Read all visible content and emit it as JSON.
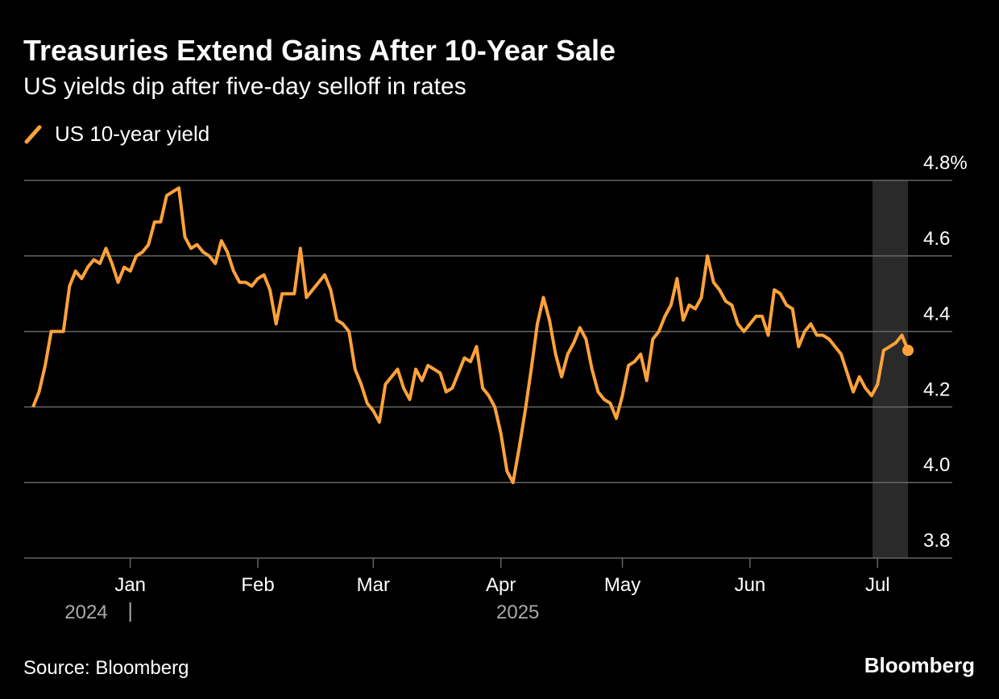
{
  "chart_data": {
    "type": "line",
    "title": "Treasuries Extend Gains After 10-Year Sale",
    "subtitle": "US yields dip after five-day selloff in rates",
    "categories": [
      null,
      null,
      null,
      null,
      null,
      null,
      null,
      null,
      null,
      null,
      null,
      null,
      null,
      null,
      null,
      null,
      "Jan",
      null,
      null,
      null,
      null,
      null,
      null,
      null,
      null,
      null,
      null,
      null,
      null,
      null,
      null,
      null,
      null,
      null,
      null,
      null,
      null,
      "Feb",
      null,
      null,
      null,
      null,
      null,
      null,
      null,
      null,
      null,
      null,
      null,
      null,
      null,
      null,
      null,
      null,
      null,
      null,
      "Mar",
      null,
      null,
      null,
      null,
      null,
      null,
      null,
      null,
      null,
      null,
      null,
      null,
      null,
      null,
      null,
      null,
      null,
      null,
      null,
      null,
      "Apr",
      null,
      null,
      null,
      null,
      null,
      null,
      null,
      null,
      null,
      null,
      null,
      null,
      null,
      null,
      null,
      null,
      null,
      null,
      null,
      "May",
      null,
      null,
      null,
      null,
      null,
      null,
      null,
      null,
      null,
      null,
      null,
      null,
      null,
      null,
      null,
      null,
      null,
      null,
      null,
      null,
      "Jun",
      null,
      null,
      null,
      null,
      null,
      null,
      null,
      null,
      null,
      null,
      null,
      null,
      null,
      null,
      null,
      null,
      null,
      null,
      null,
      null,
      "Jul",
      null,
      null,
      null,
      null,
      null
    ],
    "year_labels": [
      "2024",
      "2025"
    ],
    "series": [
      {
        "name": "US 10-year yield",
        "color": "#ffa23a",
        "values": [
          4.2,
          4.24,
          4.31,
          4.4,
          4.4,
          4.4,
          4.52,
          4.56,
          4.54,
          4.57,
          4.59,
          4.58,
          4.62,
          4.58,
          4.53,
          4.57,
          4.56,
          4.6,
          4.61,
          4.63,
          4.69,
          4.69,
          4.76,
          4.77,
          4.78,
          4.65,
          4.62,
          4.63,
          4.61,
          4.6,
          4.58,
          4.64,
          4.61,
          4.56,
          4.53,
          4.53,
          4.52,
          4.54,
          4.55,
          4.51,
          4.42,
          4.5,
          4.5,
          4.5,
          4.62,
          4.49,
          4.51,
          4.53,
          4.55,
          4.51,
          4.43,
          4.42,
          4.4,
          4.3,
          4.26,
          4.21,
          4.19,
          4.16,
          4.26,
          4.28,
          4.3,
          4.25,
          4.22,
          4.3,
          4.27,
          4.31,
          4.3,
          4.29,
          4.24,
          4.25,
          4.29,
          4.33,
          4.32,
          4.36,
          4.25,
          4.23,
          4.2,
          4.13,
          4.03,
          4.0,
          4.09,
          4.19,
          4.3,
          4.42,
          4.49,
          4.43,
          4.34,
          4.28,
          4.34,
          4.37,
          4.41,
          4.38,
          4.3,
          4.24,
          4.22,
          4.21,
          4.17,
          4.23,
          4.31,
          4.32,
          4.34,
          4.27,
          4.38,
          4.4,
          4.44,
          4.47,
          4.54,
          4.43,
          4.47,
          4.46,
          4.49,
          4.6,
          4.53,
          4.51,
          4.48,
          4.47,
          4.42,
          4.4,
          4.42,
          4.44,
          4.44,
          4.39,
          4.51,
          4.5,
          4.47,
          4.46,
          4.36,
          4.4,
          4.42,
          4.39,
          4.39,
          4.38,
          4.36,
          4.34,
          4.29,
          4.24,
          4.28,
          4.25,
          4.23,
          4.26,
          4.35,
          4.36,
          4.37,
          4.39,
          4.35
        ]
      }
    ],
    "ylim": [
      3.8,
      4.8
    ],
    "yticks": [
      3.8,
      {
        "value": 4,
        "label": "4.0"
      },
      4.2,
      4.4,
      4.6,
      {
        "value": 4.8,
        "label": "4.8%"
      }
    ],
    "grid": true,
    "source": "Source: Bloomberg",
    "brand": "Bloomberg"
  }
}
